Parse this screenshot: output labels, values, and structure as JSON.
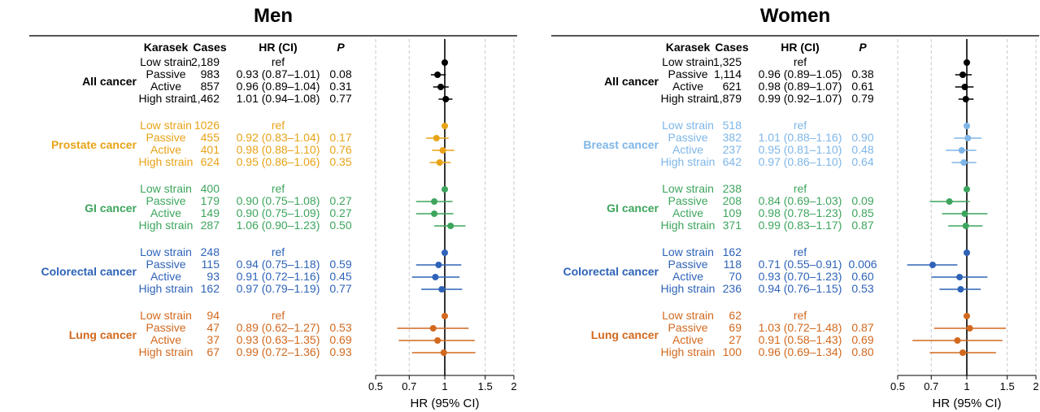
{
  "chart_data": [
    {
      "type": "forest",
      "title": "Men",
      "column_headers": {
        "exposure": "Karasek",
        "cases": "Cases",
        "hr": "HR (CI)",
        "p": "P"
      },
      "xlabel": "HR (95% CI)",
      "xscale": "log",
      "xlim": [
        0.5,
        2
      ],
      "xticks": [
        0.5,
        0.7,
        1,
        1.5,
        2
      ],
      "xtick_labels": [
        "0.5",
        "0.7",
        "1",
        "1.5",
        "2"
      ],
      "reference_line": 1,
      "groups": [
        {
          "label": "All cancer",
          "color": "#000000",
          "rows": [
            {
              "category": "Low strain",
              "cases": "2,189",
              "hr_text": "ref",
              "p": "",
              "hr": 1.0,
              "lo": null,
              "hi": null
            },
            {
              "category": "Passive",
              "cases": "983",
              "hr_text": "0.93 (0.87–1.01)",
              "p": "0.08",
              "hr": 0.93,
              "lo": 0.87,
              "hi": 1.01
            },
            {
              "category": "Active",
              "cases": "857",
              "hr_text": "0.96 (0.89–1.04)",
              "p": "0.31",
              "hr": 0.96,
              "lo": 0.89,
              "hi": 1.04
            },
            {
              "category": "High strain",
              "cases": "1,462",
              "hr_text": "1.01 (0.94–1.08)",
              "p": "0.77",
              "hr": 1.01,
              "lo": 0.94,
              "hi": 1.08
            }
          ]
        },
        {
          "label": "Prostate cancer",
          "color": "#E8A317",
          "rows": [
            {
              "category": "Low strain",
              "cases": "1026",
              "hr_text": "ref",
              "p": "",
              "hr": 1.0,
              "lo": null,
              "hi": null
            },
            {
              "category": "Passive",
              "cases": "455",
              "hr_text": "0.92 (0.83–1.04)",
              "p": "0.17",
              "hr": 0.92,
              "lo": 0.83,
              "hi": 1.04
            },
            {
              "category": "Active",
              "cases": "401",
              "hr_text": "0.98 (0.88–1.10)",
              "p": "0.76",
              "hr": 0.98,
              "lo": 0.88,
              "hi": 1.1
            },
            {
              "category": "High strain",
              "cases": "624",
              "hr_text": "0.95 (0.86–1.06)",
              "p": "0.35",
              "hr": 0.95,
              "lo": 0.86,
              "hi": 1.06
            }
          ]
        },
        {
          "label": "GI cancer",
          "color": "#3DA55D",
          "rows": [
            {
              "category": "Low strain",
              "cases": "400",
              "hr_text": "ref",
              "p": "",
              "hr": 1.0,
              "lo": null,
              "hi": null
            },
            {
              "category": "Passive",
              "cases": "179",
              "hr_text": "0.90 (0.75–1.08)",
              "p": "0.27",
              "hr": 0.9,
              "lo": 0.75,
              "hi": 1.08
            },
            {
              "category": "Active",
              "cases": "149",
              "hr_text": "0.90 (0.75–1.09)",
              "p": "0.27",
              "hr": 0.9,
              "lo": 0.75,
              "hi": 1.09
            },
            {
              "category": "High strain",
              "cases": "287",
              "hr_text": "1.06 (0.90–1.23)",
              "p": "0.50",
              "hr": 1.06,
              "lo": 0.9,
              "hi": 1.23
            }
          ]
        },
        {
          "label": "Colorectal cancer",
          "color": "#2E63B8",
          "rows": [
            {
              "category": "Low strain",
              "cases": "248",
              "hr_text": "ref",
              "p": "",
              "hr": 1.0,
              "lo": null,
              "hi": null
            },
            {
              "category": "Passive",
              "cases": "115",
              "hr_text": "0.94 (0.75–1.18)",
              "p": "0.59",
              "hr": 0.94,
              "lo": 0.75,
              "hi": 1.18
            },
            {
              "category": "Active",
              "cases": "93",
              "hr_text": "0.91 (0.72–1.16)",
              "p": "0.45",
              "hr": 0.91,
              "lo": 0.72,
              "hi": 1.16
            },
            {
              "category": "High strain",
              "cases": "162",
              "hr_text": "0.97 (0.79–1.19)",
              "p": "0.77",
              "hr": 0.97,
              "lo": 0.79,
              "hi": 1.19
            }
          ]
        },
        {
          "label": "Lung cancer",
          "color": "#D2691E",
          "rows": [
            {
              "category": "Low strain",
              "cases": "94",
              "hr_text": "ref",
              "p": "",
              "hr": 1.0,
              "lo": null,
              "hi": null
            },
            {
              "category": "Passive",
              "cases": "47",
              "hr_text": "0.89 (0.62–1.27)",
              "p": "0.53",
              "hr": 0.89,
              "lo": 0.62,
              "hi": 1.27
            },
            {
              "category": "Active",
              "cases": "37",
              "hr_text": "0.93 (0.63–1.35)",
              "p": "0.69",
              "hr": 0.93,
              "lo": 0.63,
              "hi": 1.35
            },
            {
              "category": "High strain",
              "cases": "67",
              "hr_text": "0.99 (0.72–1.36)",
              "p": "0.93",
              "hr": 0.99,
              "lo": 0.72,
              "hi": 1.36
            }
          ]
        }
      ]
    },
    {
      "type": "forest",
      "title": "Women",
      "column_headers": {
        "exposure": "Karasek",
        "cases": "Cases",
        "hr": "HR (CI)",
        "p": "P"
      },
      "xlabel": "HR (95% CI)",
      "xscale": "log",
      "xlim": [
        0.5,
        2
      ],
      "xticks": [
        0.5,
        0.7,
        1,
        1.5,
        2
      ],
      "xtick_labels": [
        "0.5",
        "0.7",
        "1",
        "1.5",
        "2"
      ],
      "reference_line": 1,
      "groups": [
        {
          "label": "All cancer",
          "color": "#000000",
          "rows": [
            {
              "category": "Low strain",
              "cases": "1,325",
              "hr_text": "ref",
              "p": "",
              "hr": 1.0,
              "lo": null,
              "hi": null
            },
            {
              "category": "Passive",
              "cases": "1,114",
              "hr_text": "0.96 (0.89–1.05)",
              "p": "0.38",
              "hr": 0.96,
              "lo": 0.89,
              "hi": 1.05
            },
            {
              "category": "Active",
              "cases": "621",
              "hr_text": "0.98 (0.89–1.07)",
              "p": "0.61",
              "hr": 0.98,
              "lo": 0.89,
              "hi": 1.07
            },
            {
              "category": "High strain",
              "cases": "1,879",
              "hr_text": "0.99 (0.92–1.07)",
              "p": "0.79",
              "hr": 0.99,
              "lo": 0.92,
              "hi": 1.07
            }
          ]
        },
        {
          "label": "Breast cancer",
          "color": "#7EB6E8",
          "rows": [
            {
              "category": "Low strain",
              "cases": "518",
              "hr_text": "ref",
              "p": "",
              "hr": 1.0,
              "lo": null,
              "hi": null
            },
            {
              "category": "Passive",
              "cases": "382",
              "hr_text": "1.01 (0.88–1.16)",
              "p": "0.90",
              "hr": 1.01,
              "lo": 0.88,
              "hi": 1.16
            },
            {
              "category": "Active",
              "cases": "237",
              "hr_text": "0.95 (0.81–1.10)",
              "p": "0.48",
              "hr": 0.95,
              "lo": 0.81,
              "hi": 1.1
            },
            {
              "category": "High strain",
              "cases": "642",
              "hr_text": "0.97 (0.86–1.10)",
              "p": "0.64",
              "hr": 0.97,
              "lo": 0.86,
              "hi": 1.1
            }
          ]
        },
        {
          "label": "GI cancer",
          "color": "#3DA55D",
          "rows": [
            {
              "category": "Low strain",
              "cases": "238",
              "hr_text": "ref",
              "p": "",
              "hr": 1.0,
              "lo": null,
              "hi": null
            },
            {
              "category": "Passive",
              "cases": "208",
              "hr_text": "0.84 (0.69–1.03)",
              "p": "0.09",
              "hr": 0.84,
              "lo": 0.69,
              "hi": 1.03
            },
            {
              "category": "Active",
              "cases": "109",
              "hr_text": "0.98 (0.78–1.23)",
              "p": "0.85",
              "hr": 0.98,
              "lo": 0.78,
              "hi": 1.23
            },
            {
              "category": "High strain",
              "cases": "371",
              "hr_text": "0.99 (0.83–1.17)",
              "p": "0.87",
              "hr": 0.99,
              "lo": 0.83,
              "hi": 1.17
            }
          ]
        },
        {
          "label": "Colorectal cancer",
          "color": "#2E63B8",
          "rows": [
            {
              "category": "Low strain",
              "cases": "162",
              "hr_text": "ref",
              "p": "",
              "hr": 1.0,
              "lo": null,
              "hi": null
            },
            {
              "category": "Passive",
              "cases": "118",
              "hr_text": "0.71 (0.55–0.91)",
              "p": "0.006",
              "hr": 0.71,
              "lo": 0.55,
              "hi": 0.91
            },
            {
              "category": "Active",
              "cases": "70",
              "hr_text": "0.93 (0.70–1.23)",
              "p": "0.60",
              "hr": 0.93,
              "lo": 0.7,
              "hi": 1.23
            },
            {
              "category": "High strain",
              "cases": "236",
              "hr_text": "0.94 (0.76–1.15)",
              "p": "0.53",
              "hr": 0.94,
              "lo": 0.76,
              "hi": 1.15
            }
          ]
        },
        {
          "label": "Lung cancer",
          "color": "#D2691E",
          "rows": [
            {
              "category": "Low strain",
              "cases": "62",
              "hr_text": "ref",
              "p": "",
              "hr": 1.0,
              "lo": null,
              "hi": null
            },
            {
              "category": "Passive",
              "cases": "69",
              "hr_text": "1.03 (0.72–1.48)",
              "p": "0.87",
              "hr": 1.03,
              "lo": 0.72,
              "hi": 1.48
            },
            {
              "category": "Active",
              "cases": "27",
              "hr_text": "0.91 (0.58–1.43)",
              "p": "0.69",
              "hr": 0.91,
              "lo": 0.58,
              "hi": 1.43
            },
            {
              "category": "High strain",
              "cases": "100",
              "hr_text": "0.96 (0.69–1.34)",
              "p": "0.80",
              "hr": 0.96,
              "lo": 0.69,
              "hi": 1.34
            }
          ]
        }
      ]
    }
  ]
}
